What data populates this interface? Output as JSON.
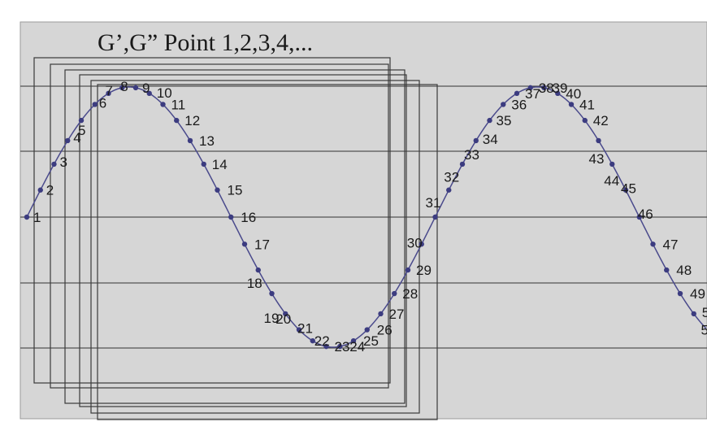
{
  "title": "G’,G” Point 1,2,3,4,...",
  "colors": {
    "background": "#d6d6d6",
    "curve": "#4a4a8c",
    "points": "#3c3c80",
    "gridlines": "#333333",
    "boxes": "#3a3a3a"
  },
  "points": {
    "count": 56,
    "visible_labels": [
      "1",
      "2",
      "3",
      "4",
      "5",
      "6",
      "7",
      "8",
      "9",
      "10",
      "11",
      "12",
      "13",
      "14",
      "15",
      "16",
      "17",
      "18",
      "19",
      "20",
      "21",
      "22",
      "23",
      "24",
      "25",
      "26",
      "27",
      "28",
      "29",
      "30",
      "31",
      "32",
      "33",
      "34",
      "35",
      "36",
      "37",
      "38",
      "39",
      "40",
      "41",
      "42",
      "43",
      "44",
      "45",
      "46",
      "47",
      "48",
      "49",
      "50",
      "5"
    ]
  },
  "horizontal_lines": 5,
  "window_boxes": 6
}
